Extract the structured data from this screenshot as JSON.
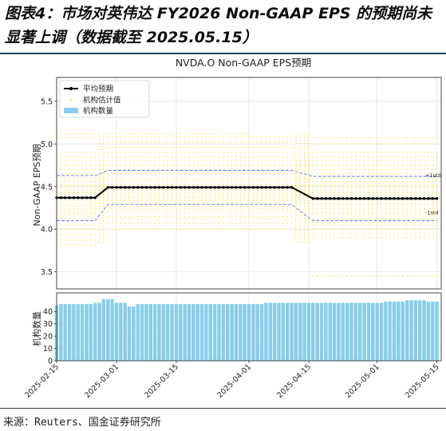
{
  "header": {
    "title": "图表4：市场对英伟达 FY2026 Non-GAAP EPS 的预期尚未显著上调（数据截至 2025.05.15）"
  },
  "footer": {
    "source": "来源：Reuters、国金证券研究所"
  },
  "colors": {
    "mean": "#000000",
    "estimates": "#FFE14D",
    "band": "#5B7FD6",
    "bars": "#87CEEB",
    "rule": "#1f3b5a"
  },
  "chart_data": {
    "type": "line",
    "title": "NVDA.O Non-GAAP EPS预期",
    "ylabel_top": "Non-GAAP EPS预期",
    "ylabel_bottom": "机构数量",
    "ylim_top": [
      3.3,
      5.78
    ],
    "ylim_bottom": [
      0,
      55
    ],
    "yticks_top": [
      3.5,
      4.0,
      4.5,
      5.0,
      5.5
    ],
    "yticks_bottom": [
      0,
      10,
      20,
      30,
      40
    ],
    "x_start": "2025-02-15",
    "x_end": "2025-05-16",
    "x_ticks": [
      "2025-02-15",
      "2025-03-01",
      "2025-03-15",
      "2025-04-01",
      "2025-04-15",
      "2025-05-01",
      "2025-05-15"
    ],
    "grid": true,
    "legend_position": "top-left",
    "legend": {
      "mean": "平均预期",
      "estimates": "机构估计值",
      "count": "机构数量"
    },
    "band_labels": {
      "upper": "+1std",
      "lower": "-1std"
    },
    "mean_segments": [
      {
        "from": "2025-02-15",
        "to": "2025-02-24",
        "value": 4.37
      },
      {
        "from": "2025-02-27",
        "to": "2025-04-11",
        "value": 4.49
      },
      {
        "from": "2025-04-16",
        "to": "2025-05-15",
        "value": 4.36
      }
    ],
    "upper_std_segments": [
      {
        "from": "2025-02-15",
        "to": "2025-02-24",
        "value": 4.63
      },
      {
        "from": "2025-02-27",
        "to": "2025-04-11",
        "value": 4.69
      },
      {
        "from": "2025-04-16",
        "to": "2025-05-15",
        "value": 4.62
      }
    ],
    "lower_std_segments": [
      {
        "from": "2025-02-15",
        "to": "2025-02-24",
        "value": 4.1
      },
      {
        "from": "2025-02-27",
        "to": "2025-04-11",
        "value": 4.29
      },
      {
        "from": "2025-04-16",
        "to": "2025-05-15",
        "value": 4.1
      }
    ],
    "estimate_levels": [
      {
        "from": "2025-02-15",
        "to": "2025-05-15",
        "values": [
          4.3,
          4.34,
          4.37,
          4.4,
          4.43,
          4.46,
          4.5,
          4.52,
          4.56,
          4.6,
          4.65,
          4.7,
          4.75,
          4.8
        ]
      },
      {
        "from": "2025-02-15",
        "to": "2025-02-24",
        "values": [
          3.82,
          3.87,
          3.94,
          4.0,
          4.05,
          4.13,
          4.17,
          4.2,
          4.24,
          4.27,
          4.85,
          4.9,
          5.07,
          5.12
        ]
      },
      {
        "from": "2025-02-27",
        "to": "2025-04-11",
        "values": [
          4.0,
          4.07,
          4.12,
          4.15,
          4.2,
          4.24,
          4.27,
          4.85,
          4.9,
          4.96,
          5.02,
          5.08
        ]
      },
      {
        "from": "2025-02-27",
        "to": "2025-04-01",
        "values": [
          5.12
        ]
      },
      {
        "from": "2025-04-16",
        "to": "2025-05-15",
        "values": [
          3.45,
          3.9,
          3.95,
          4.0,
          4.05,
          4.08,
          4.12,
          4.17,
          4.2,
          4.24,
          4.27,
          4.85,
          4.9,
          5.0,
          5.07
        ]
      }
    ],
    "count_segments": [
      {
        "from": "2025-02-15",
        "to": "2025-02-15",
        "value": 45
      },
      {
        "from": "2025-02-16",
        "to": "2025-02-23",
        "value": 46
      },
      {
        "from": "2025-02-24",
        "to": "2025-02-25",
        "value": 47
      },
      {
        "from": "2025-02-26",
        "to": "2025-02-28",
        "value": 50
      },
      {
        "from": "2025-03-01",
        "to": "2025-03-03",
        "value": 47
      },
      {
        "from": "2025-03-04",
        "to": "2025-03-05",
        "value": 44
      },
      {
        "from": "2025-03-06",
        "to": "2025-04-04",
        "value": 46
      },
      {
        "from": "2025-04-05",
        "to": "2025-05-02",
        "value": 47
      },
      {
        "from": "2025-05-03",
        "to": "2025-05-07",
        "value": 48
      },
      {
        "from": "2025-05-08",
        "to": "2025-05-12",
        "value": 49
      },
      {
        "from": "2025-05-13",
        "to": "2025-05-15",
        "value": 48
      }
    ]
  }
}
